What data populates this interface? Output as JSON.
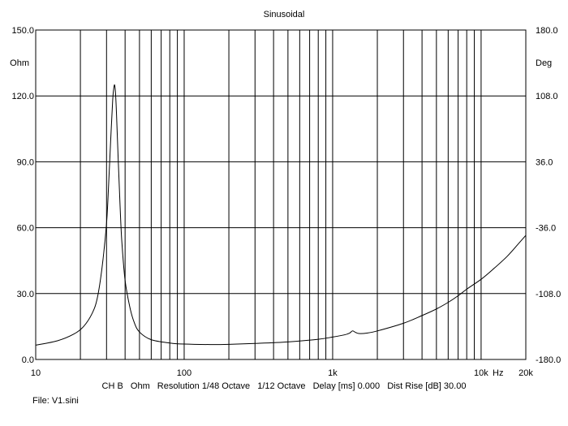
{
  "chart_data": {
    "type": "line",
    "title": "Sinusoidal",
    "x_scale": "log",
    "xlim": [
      10,
      20000
    ],
    "ylim": [
      0,
      150
    ],
    "y2lim": [
      -180,
      180
    ],
    "ylabel": "Ohm",
    "y2label": "Deg",
    "xunit": "Hz",
    "grid": true,
    "x_ticks": [
      {
        "value": 10,
        "label": "10"
      },
      {
        "value": 100,
        "label": "100"
      },
      {
        "value": 1000,
        "label": "1k"
      },
      {
        "value": 10000,
        "label": "10k"
      },
      {
        "value": 20000,
        "label": "20k"
      }
    ],
    "y_ticks": [
      {
        "value": 0,
        "label": "0.0"
      },
      {
        "value": 30,
        "label": "30.0"
      },
      {
        "value": 60,
        "label": "60.0"
      },
      {
        "value": 90,
        "label": "90.0"
      },
      {
        "value": 120,
        "label": "120.0"
      },
      {
        "value": 150,
        "label": "150.0"
      }
    ],
    "y2_ticks": [
      {
        "value": -180,
        "label": "-180.0"
      },
      {
        "value": -108,
        "label": "-108.0"
      },
      {
        "value": -36,
        "label": "-36.0"
      },
      {
        "value": 36,
        "label": "36.0"
      },
      {
        "value": 108,
        "label": "108.0"
      },
      {
        "value": 180,
        "label": "180.0"
      }
    ],
    "series": [
      {
        "color": "#000000",
        "x": [
          10,
          14,
          18,
          21,
          24,
          26,
          28,
          30,
          31,
          32,
          33,
          33.5,
          34,
          34.5,
          35,
          36,
          37,
          38,
          40,
          43,
          46,
          50,
          60,
          80,
          100,
          150,
          200,
          300,
          500,
          800,
          1000,
          1200,
          1300,
          1360,
          1420,
          1500,
          1700,
          2000,
          3000,
          4000,
          5000,
          6000,
          7000,
          8000,
          10000,
          12000,
          15000,
          18000,
          20000
        ],
        "y": [
          6.5,
          8.5,
          11.5,
          15,
          21,
          28,
          42,
          62,
          80,
          100,
          118,
          123,
          125,
          121,
          112,
          90,
          70,
          54,
          36,
          24,
          17,
          12.5,
          9,
          7.5,
          7,
          6.8,
          6.9,
          7.3,
          8,
          9.2,
          10.2,
          11.2,
          12,
          13,
          12.4,
          11.8,
          12,
          13,
          16.5,
          20,
          23,
          26,
          29,
          32,
          36.5,
          41,
          47,
          53,
          56.5
        ]
      }
    ]
  },
  "footer": {
    "channel": "CH B",
    "unit": "Ohm",
    "resolution": "Resolution 1/48 Octave",
    "smoothing": "1/12 Octave",
    "delay": "Delay [ms] 0.000",
    "dist_rise": "Dist Rise [dB] 30.00",
    "file": "File: V1.sini"
  }
}
